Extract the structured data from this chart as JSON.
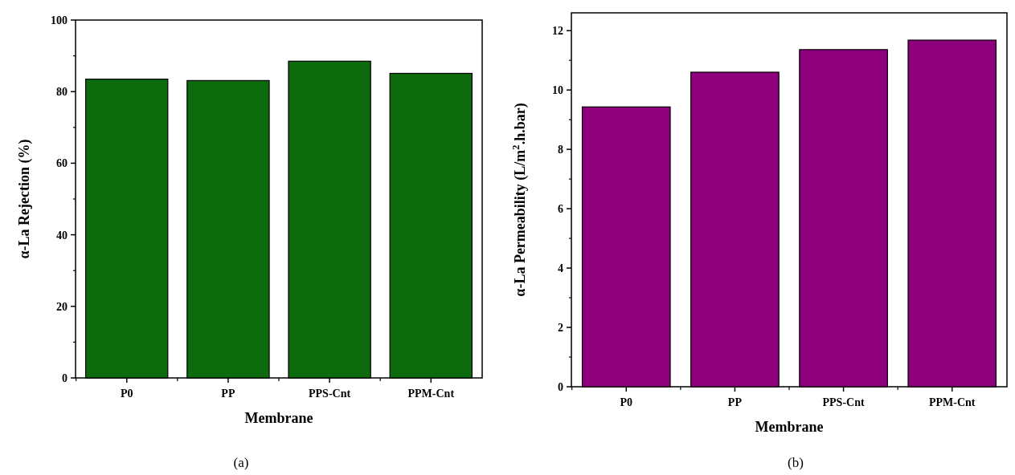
{
  "chart_data": [
    {
      "type": "bar",
      "categories": [
        "P0",
        "PP",
        "PPS-Cnt",
        "PPM-Cnt"
      ],
      "values": [
        83.5,
        83.1,
        88.5,
        85.1
      ],
      "color": "#0d6b0d",
      "xlabel": "Membrane",
      "ylabel": "α-La Rejection (%)",
      "ylim": [
        0,
        100
      ],
      "yticks": [
        0,
        20,
        40,
        60,
        80,
        100
      ],
      "annotations": [
        "(a)"
      ]
    },
    {
      "type": "bar",
      "categories": [
        "P0",
        "PP",
        "PPS-Cnt",
        "PPM-Cnt"
      ],
      "values": [
        9.43,
        10.6,
        11.36,
        11.68
      ],
      "color": "#8e007c",
      "xlabel": "Membrane",
      "ylabel": "α-La Permeability (L/m$^{2}$.h.bar)",
      "ylim": [
        0,
        12.6
      ],
      "yticks": [
        0,
        2,
        4,
        6,
        8,
        10,
        12
      ],
      "annotations": [
        "(b)"
      ]
    }
  ]
}
